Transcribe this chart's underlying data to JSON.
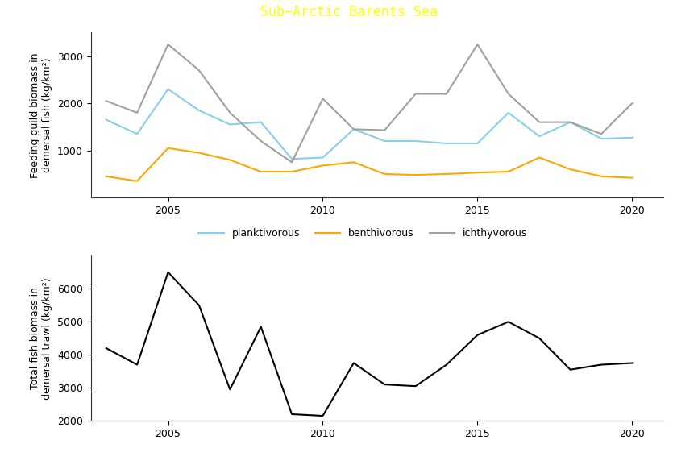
{
  "title": "Sub−Arctic Barents Sea",
  "title_bg_color": "#FF00FF",
  "title_text_color": "#FFFF00",
  "years": [
    2003,
    2004,
    2005,
    2006,
    2007,
    2008,
    2009,
    2010,
    2011,
    2012,
    2013,
    2014,
    2015,
    2016,
    2017,
    2018,
    2019,
    2020
  ],
  "planktivorous": [
    1650,
    1350,
    2300,
    1850,
    1550,
    1600,
    820,
    850,
    1450,
    1200,
    1200,
    1150,
    1150,
    1800,
    1300,
    1600,
    1250,
    1270
  ],
  "benthivorous": [
    450,
    350,
    1050,
    950,
    800,
    550,
    550,
    680,
    750,
    500,
    480,
    500,
    530,
    550,
    850,
    600,
    450,
    420
  ],
  "ichthyvorous": [
    2050,
    1800,
    3250,
    2700,
    1800,
    1200,
    750,
    2100,
    1450,
    1430,
    2200,
    2200,
    3250,
    2200,
    1600,
    1600,
    1350,
    2000
  ],
  "total_biomass": [
    4200,
    3700,
    6500,
    5500,
    2950,
    4850,
    2200,
    2150,
    3750,
    3100,
    3050,
    3700,
    4600,
    5000,
    4500,
    3550,
    3700,
    3750
  ],
  "plank_color": "#87CEEB",
  "benth_color": "#FFA500",
  "ichthy_color": "#A0A0A0",
  "total_color": "#000000",
  "upper_ylabel": "Feeding guild biomass in\ndemersal fish (kg/km²)",
  "lower_ylabel": "Total fish biomass in\ndemersal trawl (kg/km²)",
  "upper_ylim": [
    0,
    3500
  ],
  "lower_ylim": [
    2000,
    7000
  ],
  "upper_yticks": [
    1000,
    2000,
    3000
  ],
  "lower_yticks": [
    2000,
    3000,
    4000,
    5000,
    6000
  ],
  "xlim": [
    2002.5,
    2021
  ],
  "xticks": [
    2005,
    2010,
    2015,
    2020
  ],
  "legend_labels": [
    "planktivorous",
    "benthivorous",
    "ichthyvorous"
  ],
  "linewidth": 1.5
}
